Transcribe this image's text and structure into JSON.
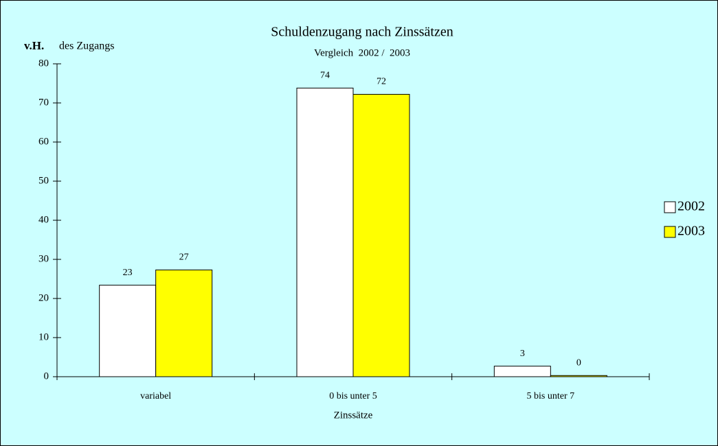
{
  "chart_data": {
    "type": "bar",
    "title": "Schuldenzugang nach Zinssätzen",
    "subtitle": "Vergleich  2002 /  2003",
    "ylabel_bold": "v.H.",
    "ylabel": "des Zugangs",
    "xlabel": "Zinssätze",
    "categories": [
      "variabel",
      "0 bis unter 5",
      "5 bis unter 7"
    ],
    "series": [
      {
        "name": "2002",
        "color": "#ffffff",
        "values": [
          23.4,
          73.8,
          2.7
        ],
        "value_labels": [
          "23",
          "74",
          "3"
        ]
      },
      {
        "name": "2003",
        "color": "#ffff00",
        "values": [
          27.3,
          72.2,
          0.3
        ],
        "value_labels": [
          "27",
          "72",
          "0"
        ]
      }
    ],
    "ylim": [
      0,
      80
    ],
    "yticks": [
      0,
      10,
      20,
      30,
      40,
      50,
      60,
      70,
      80
    ],
    "legend": "right"
  }
}
